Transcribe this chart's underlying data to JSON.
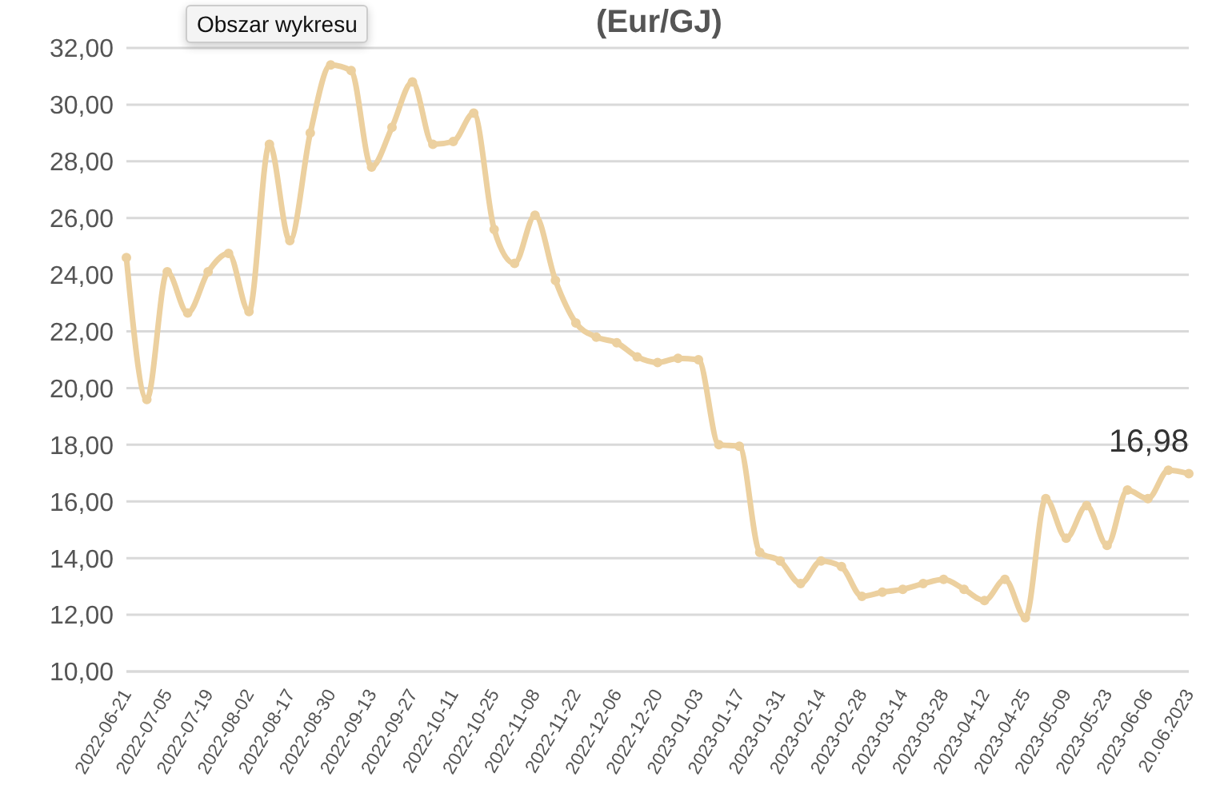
{
  "chart_data": {
    "type": "line",
    "title": "(Eur/GJ)",
    "annotations": [
      "Obszar wykresu"
    ],
    "categories": [
      "2022-06-21",
      null,
      "2022-07-05",
      null,
      "2022-07-19",
      null,
      "2022-08-02",
      null,
      "2022-08-17",
      null,
      "2022-08-30",
      null,
      "2022-09-13",
      null,
      "2022-09-27",
      null,
      "2022-10-11",
      null,
      "2022-10-25",
      null,
      "2022-11-08",
      null,
      "2022-11-22",
      null,
      "2022-12-06",
      null,
      "2022-12-20",
      null,
      "2023-01-03",
      null,
      "2023-01-17",
      null,
      "2023-01-31",
      null,
      "2023-02-14",
      null,
      "2023-02-28",
      null,
      "2023-03-14",
      null,
      "2023-03-28",
      null,
      "2023-04-12",
      null,
      "2023-04-25",
      null,
      "2023-05-09",
      null,
      "2023-05-23",
      null,
      "2023-06-06",
      null,
      "20.06.2023"
    ],
    "series": [
      {
        "color": "#ecd09f",
        "values": [
          24.6,
          19.6,
          24.1,
          22.65,
          24.1,
          24.75,
          22.7,
          28.6,
          25.2,
          29.0,
          31.4,
          31.2,
          27.8,
          29.2,
          30.8,
          28.6,
          28.7,
          29.7,
          25.6,
          24.4,
          26.1,
          23.8,
          22.3,
          21.8,
          21.6,
          21.1,
          20.9,
          21.05,
          21.0,
          18.0,
          17.95,
          14.2,
          13.9,
          13.1,
          13.9,
          13.7,
          12.65,
          12.8,
          12.9,
          13.1,
          13.25,
          12.9,
          12.5,
          13.25,
          11.9,
          16.1,
          14.7,
          15.85,
          14.45,
          16.4,
          16.1,
          17.1,
          16.98
        ],
        "value_labels": [
          null,
          null,
          null,
          null,
          null,
          null,
          null,
          null,
          null,
          null,
          null,
          null,
          null,
          null,
          null,
          null,
          null,
          null,
          null,
          null,
          null,
          null,
          null,
          null,
          null,
          null,
          null,
          null,
          null,
          null,
          null,
          null,
          null,
          null,
          null,
          null,
          null,
          null,
          null,
          null,
          null,
          null,
          null,
          null,
          null,
          null,
          null,
          null,
          null,
          null,
          null,
          null,
          "16,98"
        ]
      }
    ],
    "ylim": [
      10,
      32
    ],
    "yticks": [
      {
        "value": 10,
        "label": "10,00"
      },
      {
        "value": 12,
        "label": "12,00"
      },
      {
        "value": 14,
        "label": "14,00"
      },
      {
        "value": 16,
        "label": "16,00"
      },
      {
        "value": 18,
        "label": "18,00"
      },
      {
        "value": 20,
        "label": "20,00"
      },
      {
        "value": 22,
        "label": "22,00"
      },
      {
        "value": 24,
        "label": "24,00"
      },
      {
        "value": 26,
        "label": "26,00"
      },
      {
        "value": 28,
        "label": "28,00"
      },
      {
        "value": 30,
        "label": "30,00"
      },
      {
        "value": 32,
        "label": "32,00"
      }
    ],
    "grid": "y",
    "marker": "circle",
    "line_style": "solid",
    "legend": false
  }
}
